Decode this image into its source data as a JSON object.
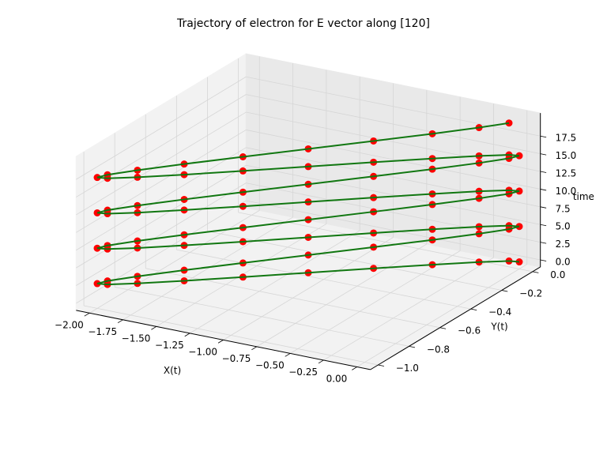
{
  "chart_data": {
    "type": "line3d",
    "title": "Trajectory of electron for E vector along [120]",
    "x_label": "X(t)",
    "y_label": "Y(t)",
    "z_label": "time",
    "line_color": "#117711",
    "marker_color": "#ff0000",
    "grid": true,
    "x": [
      0,
      -0.049,
      -0.191,
      -0.412,
      -0.691,
      -1,
      -1.309,
      -1.588,
      -1.809,
      -1.951,
      -2,
      -1.951,
      -1.809,
      -1.588,
      -1.309,
      -1,
      -0.691,
      -0.412,
      -0.191,
      -0.049,
      0,
      -0.049,
      -0.191,
      -0.412,
      -0.691,
      -1,
      -1.309,
      -1.588,
      -1.809,
      -1.951,
      -2,
      -1.951,
      -1.809,
      -1.588,
      -1.309,
      -1,
      -0.691,
      -0.412,
      -0.191,
      -0.049,
      0,
      -0.049,
      -0.191,
      -0.412,
      -0.691,
      -1,
      -1.309,
      -1.588,
      -1.809,
      -1.951,
      -2,
      -1.951,
      -1.809,
      -1.588,
      -1.309,
      -1,
      -0.691,
      -0.412,
      -0.191,
      -0.049,
      0,
      -0.049,
      -0.191,
      -0.412,
      -0.691,
      -1,
      -1.309,
      -1.588,
      -1.809,
      -1.951,
      -2,
      -1.951,
      -1.809,
      -1.588,
      -1.309,
      -1,
      -0.691,
      -0.412,
      -0.191,
      -0.049
    ],
    "y": [
      0,
      -0.024,
      -0.095,
      -0.206,
      -0.345,
      -0.5,
      -0.655,
      -0.794,
      -0.905,
      -0.976,
      -1,
      -0.976,
      -0.905,
      -0.794,
      -0.655,
      -0.5,
      -0.345,
      -0.206,
      -0.095,
      -0.024,
      0,
      -0.024,
      -0.095,
      -0.206,
      -0.345,
      -0.5,
      -0.655,
      -0.794,
      -0.905,
      -0.976,
      -1,
      -0.976,
      -0.905,
      -0.794,
      -0.655,
      -0.5,
      -0.345,
      -0.206,
      -0.095,
      -0.024,
      0,
      -0.024,
      -0.095,
      -0.206,
      -0.345,
      -0.5,
      -0.655,
      -0.794,
      -0.905,
      -0.976,
      -1,
      -0.976,
      -0.905,
      -0.794,
      -0.655,
      -0.5,
      -0.345,
      -0.206,
      -0.095,
      -0.024,
      0,
      -0.024,
      -0.095,
      -0.206,
      -0.345,
      -0.5,
      -0.655,
      -0.794,
      -0.905,
      -0.976,
      -1,
      -0.976,
      -0.905,
      -0.794,
      -0.655,
      -0.5,
      -0.345,
      -0.206,
      -0.095,
      -0.024
    ],
    "z": [
      0,
      0.25,
      0.5,
      0.75,
      1,
      1.25,
      1.5,
      1.75,
      2,
      2.25,
      2.5,
      2.75,
      3,
      3.25,
      3.5,
      3.75,
      4,
      4.25,
      4.5,
      4.75,
      5,
      5.25,
      5.5,
      5.75,
      6,
      6.25,
      6.5,
      6.75,
      7,
      7.25,
      7.5,
      7.75,
      8,
      8.25,
      8.5,
      8.75,
      9,
      9.25,
      9.5,
      9.75,
      10,
      10.25,
      10.5,
      10.75,
      11,
      11.25,
      11.5,
      11.75,
      12,
      12.25,
      12.5,
      12.75,
      13,
      13.25,
      13.5,
      13.75,
      14,
      14.25,
      14.5,
      14.75,
      15,
      15.25,
      15.5,
      15.75,
      16,
      16.25,
      16.5,
      16.75,
      17,
      17.25,
      17.5,
      17.75,
      18,
      18.25,
      18.5,
      18.75,
      19,
      19.25,
      19.5,
      19.75
    ],
    "xlim": [
      -2.1,
      0.1
    ],
    "ylim": [
      -1.05,
      0.05
    ],
    "zlim": [
      -1,
      20.75
    ],
    "xticks": [
      {
        "value": -2,
        "label": "−2.00"
      },
      {
        "value": -1.75,
        "label": "−1.75"
      },
      {
        "value": -1.5,
        "label": "−1.50"
      },
      {
        "value": -1.25,
        "label": "−1.25"
      },
      {
        "value": -1,
        "label": "−1.00"
      },
      {
        "value": -0.75,
        "label": "−0.75"
      },
      {
        "value": -0.5,
        "label": "−0.50"
      },
      {
        "value": -0.25,
        "label": "−0.25"
      },
      {
        "value": 0,
        "label": "0.00"
      }
    ],
    "yticks": [
      {
        "value": -1,
        "label": "−1.0"
      },
      {
        "value": -0.8,
        "label": "−0.8"
      },
      {
        "value": -0.6,
        "label": "−0.6"
      },
      {
        "value": -0.4,
        "label": "−0.4"
      },
      {
        "value": -0.2,
        "label": "−0.2"
      },
      {
        "value": 0,
        "label": "0.0"
      }
    ],
    "zticks": [
      {
        "value": 0,
        "label": "0.0"
      },
      2.5,
      {
        "value": 5,
        "label": "5.0"
      },
      7.5,
      {
        "value": 10,
        "label": "10.0"
      },
      12.5,
      {
        "value": 15,
        "label": "15.0"
      },
      17.5
    ]
  }
}
